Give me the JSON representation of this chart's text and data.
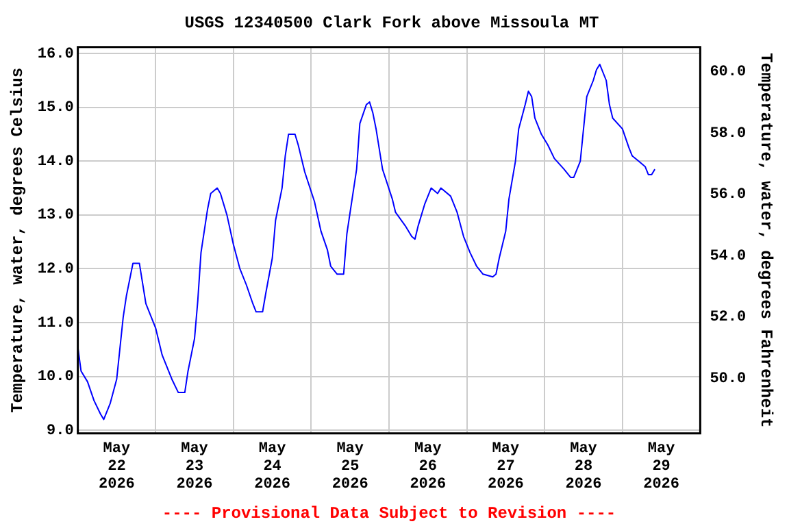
{
  "chart_data": {
    "type": "line",
    "title": "USGS 12340500 Clark Fork above Missoula MT",
    "ylabel": "Temperature, water, degrees Celsius",
    "y2label": "Temperature, water, degrees Fahrenheit",
    "annotations": [
      "---- Provisional Data Subject to Revision ----"
    ],
    "x": [
      "2026-05-22T00:00",
      "2026-05-22T01:00",
      "2026-05-22T03:00",
      "2026-05-22T05:00",
      "2026-05-22T07:00",
      "2026-05-22T08:00",
      "2026-05-22T10:00",
      "2026-05-22T12:00",
      "2026-05-22T14:00",
      "2026-05-22T15:00",
      "2026-05-22T17:00",
      "2026-05-22T19:00",
      "2026-05-22T21:00",
      "2026-05-23T00:00",
      "2026-05-23T02:00",
      "2026-05-23T05:00",
      "2026-05-23T07:00",
      "2026-05-23T09:00",
      "2026-05-23T10:00",
      "2026-05-23T12:00",
      "2026-05-23T13:00",
      "2026-05-23T14:00",
      "2026-05-23T16:00",
      "2026-05-23T17:00",
      "2026-05-23T19:00",
      "2026-05-23T20:00",
      "2026-05-23T22:00",
      "2026-05-24T00:00",
      "2026-05-24T02:00",
      "2026-05-24T04:00",
      "2026-05-24T06:00",
      "2026-05-24T07:00",
      "2026-05-24T09:00",
      "2026-05-24T10:00",
      "2026-05-24T12:00",
      "2026-05-24T13:00",
      "2026-05-24T15:00",
      "2026-05-24T16:00",
      "2026-05-24T17:00",
      "2026-05-24T19:00",
      "2026-05-24T20:00",
      "2026-05-24T22:00",
      "2026-05-25T01:00",
      "2026-05-25T03:00",
      "2026-05-25T05:00",
      "2026-05-25T06:00",
      "2026-05-25T08:00",
      "2026-05-25T10:00",
      "2026-05-25T11:00",
      "2026-05-25T12:00",
      "2026-05-25T14:00",
      "2026-05-25T15:00",
      "2026-05-25T17:00",
      "2026-05-25T18:00",
      "2026-05-25T19:00",
      "2026-05-25T20:00",
      "2026-05-25T22:00",
      "2026-05-26T01:00",
      "2026-05-26T02:00",
      "2026-05-26T05:00",
      "2026-05-26T07:00",
      "2026-05-26T08:00",
      "2026-05-26T09:00",
      "2026-05-26T11:00",
      "2026-05-26T13:00",
      "2026-05-26T15:00",
      "2026-05-26T16:00",
      "2026-05-26T19:00",
      "2026-05-26T21:00",
      "2026-05-26T23:00",
      "2026-05-27T01:00",
      "2026-05-27T03:00",
      "2026-05-27T05:00",
      "2026-05-27T08:00",
      "2026-05-27T09:00",
      "2026-05-27T10:00",
      "2026-05-27T12:00",
      "2026-05-27T13:00",
      "2026-05-27T15:00",
      "2026-05-27T16:00",
      "2026-05-27T18:00",
      "2026-05-27T19:00",
      "2026-05-27T20:00",
      "2026-05-27T21:00",
      "2026-05-27T23:00",
      "2026-05-28T01:00",
      "2026-05-28T03:00",
      "2026-05-28T06:00",
      "2026-05-28T08:00",
      "2026-05-28T09:00",
      "2026-05-28T11:00",
      "2026-05-28T12:00",
      "2026-05-28T13:00",
      "2026-05-28T15:00",
      "2026-05-28T16:00",
      "2026-05-28T17:00",
      "2026-05-28T19:00",
      "2026-05-28T20:00",
      "2026-05-28T21:00",
      "2026-05-29T00:00",
      "2026-05-29T02:00",
      "2026-05-29T03:00",
      "2026-05-29T05:00",
      "2026-05-29T07:00",
      "2026-05-29T08:00",
      "2026-05-29T09:00",
      "2026-05-29T10:00"
    ],
    "series": [
      {
        "color": "#0000ff",
        "values": [
          10.55,
          10.1,
          9.9,
          9.55,
          9.3,
          9.2,
          9.5,
          9.95,
          11.1,
          11.5,
          12.1,
          12.1,
          11.35,
          10.9,
          10.4,
          9.95,
          9.7,
          9.7,
          10.1,
          10.7,
          11.4,
          12.3,
          13.1,
          13.4,
          13.5,
          13.4,
          13.0,
          12.45,
          12.0,
          11.7,
          11.35,
          11.2,
          11.2,
          11.55,
          12.2,
          12.9,
          13.5,
          14.1,
          14.5,
          14.5,
          14.3,
          13.8,
          13.25,
          12.7,
          12.35,
          12.05,
          11.9,
          11.9,
          12.65,
          13.05,
          13.85,
          14.7,
          15.05,
          15.1,
          14.9,
          14.6,
          13.85,
          13.3,
          13.05,
          12.8,
          12.6,
          12.55,
          12.8,
          13.2,
          13.5,
          13.4,
          13.5,
          13.35,
          13.05,
          12.6,
          12.3,
          12.05,
          11.9,
          11.85,
          11.9,
          12.2,
          12.7,
          13.3,
          14.0,
          14.6,
          15.05,
          15.3,
          15.2,
          14.8,
          14.5,
          14.3,
          14.05,
          13.85,
          13.7,
          13.7,
          14.0,
          14.6,
          15.2,
          15.5,
          15.7,
          15.8,
          15.5,
          15.05,
          14.8,
          14.6,
          14.25,
          14.1,
          14.0,
          13.9,
          13.75,
          13.75,
          13.85
        ]
      }
    ],
    "xlim": [
      "2026-05-22T00:00",
      "2026-05-30T00:00"
    ],
    "xticks": [
      {
        "value": "2026-05-22T12:00",
        "label": "May 22 2026"
      },
      {
        "value": "2026-05-23T00:00",
        "label": null
      },
      {
        "value": "2026-05-23T12:00",
        "label": "May 23 2026"
      },
      {
        "value": "2026-05-24T00:00",
        "label": null
      },
      {
        "value": "2026-05-24T12:00",
        "label": "May 24 2026"
      },
      {
        "value": "2026-05-25T00:00",
        "label": null
      },
      {
        "value": "2026-05-25T12:00",
        "label": "May 25 2026"
      },
      {
        "value": "2026-05-26T00:00",
        "label": null
      },
      {
        "value": "2026-05-26T12:00",
        "label": "May 26 2026"
      },
      {
        "value": "2026-05-27T00:00",
        "label": null
      },
      {
        "value": "2026-05-27T12:00",
        "label": "May 27 2026"
      },
      {
        "value": "2026-05-28T00:00",
        "label": null
      },
      {
        "value": "2026-05-28T12:00",
        "label": "May 28 2026"
      },
      {
        "value": "2026-05-29T00:00",
        "label": null
      },
      {
        "value": "2026-05-29T12:00",
        "label": "May 29 2026"
      }
    ],
    "ylim": [
      8.94,
      16.12
    ],
    "yticks": [
      {
        "value": 9,
        "label": "9.0"
      },
      {
        "value": 10,
        "label": "10.0"
      },
      {
        "value": 11,
        "label": "11.0"
      },
      {
        "value": 12,
        "label": "12.0"
      },
      {
        "value": 13,
        "label": "13.0"
      },
      {
        "value": 14,
        "label": "14.0"
      },
      {
        "value": 15,
        "label": "15.0"
      },
      {
        "value": 16,
        "label": "16.0"
      }
    ],
    "y2lim": [
      48.2,
      60.8
    ],
    "y2ticks": [
      {
        "value": 50,
        "label": "50.0"
      },
      {
        "value": 52,
        "label": "52.0"
      },
      {
        "value": 54,
        "label": "54.0"
      },
      {
        "value": 56,
        "label": "56.0"
      },
      {
        "value": 58,
        "label": "58.0"
      },
      {
        "value": 60,
        "label": "60.0"
      }
    ],
    "grid": true,
    "marker": "none",
    "line_style": "solid"
  }
}
